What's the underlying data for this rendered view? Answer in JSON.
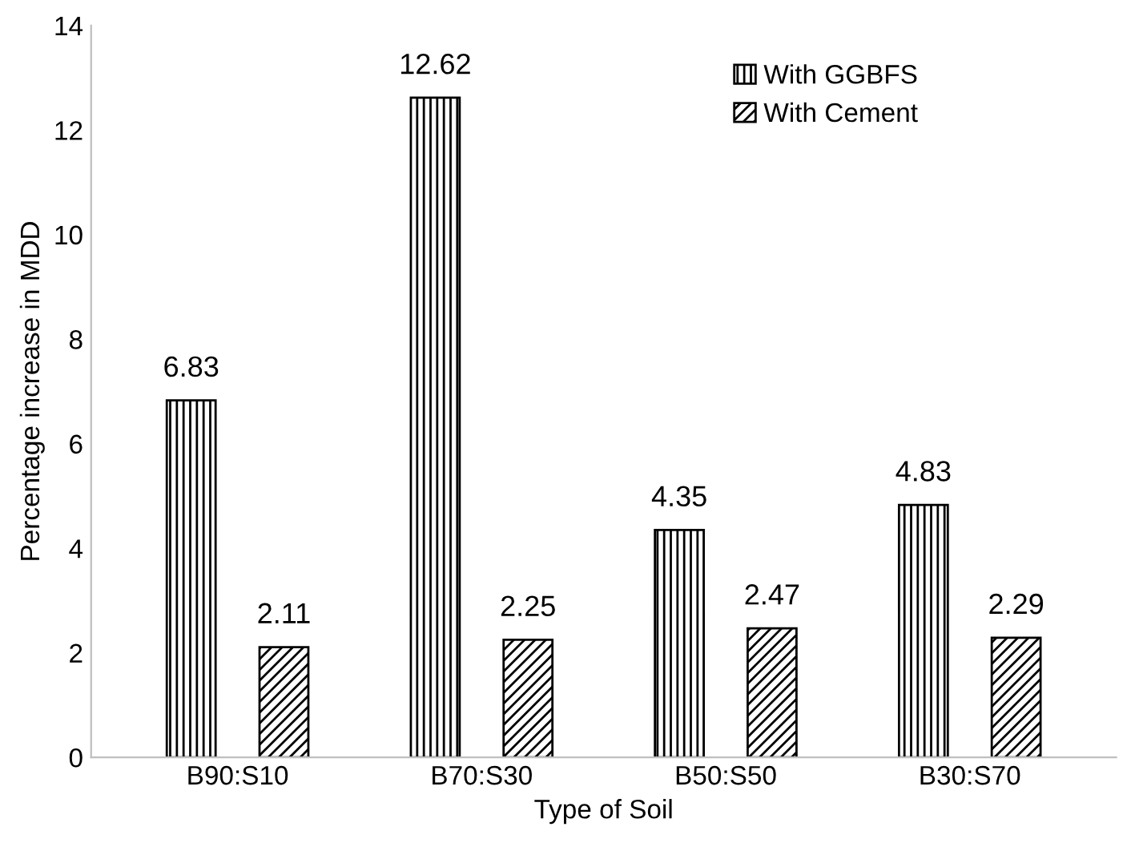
{
  "chart_data": {
    "type": "bar",
    "xlabel": "Type of Soil",
    "ylabel": "Percentage increase in MDD",
    "categories": [
      "B90:S10",
      "B70:S30",
      "B50:S50",
      "B30:S70"
    ],
    "series": [
      {
        "name": "With GGBFS",
        "color": "#000000",
        "values": [
          6.83,
          12.62,
          4.35,
          4.83
        ]
      },
      {
        "name": "With Cement",
        "color": "#000000",
        "values": [
          2.11,
          2.25,
          2.47,
          2.29
        ]
      }
    ],
    "ylim": [
      0,
      14
    ],
    "yticks": [
      0,
      2,
      4,
      6,
      8,
      10,
      12,
      14
    ],
    "data_labels": true,
    "legend": "top right",
    "grid": false
  }
}
